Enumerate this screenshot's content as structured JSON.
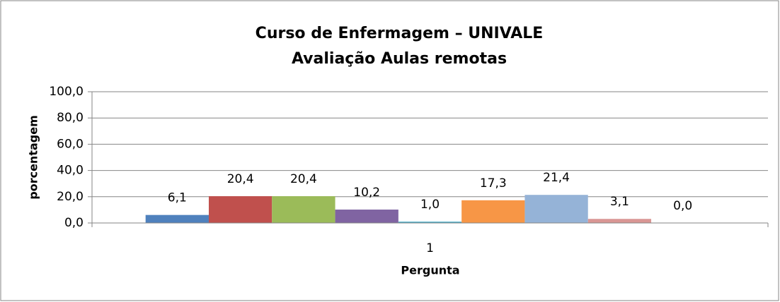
{
  "chart_data": {
    "type": "bar",
    "title": "Curso de Enfermagem – UNIVALE",
    "subtitle": "Avaliação Aulas remotas",
    "x_label": "Pergunta",
    "y_label": "porcentagem",
    "categories": [
      "1"
    ],
    "series": [
      {
        "color": "#4f81bd",
        "values": [
          6.1
        ],
        "value_labels": [
          "6,1"
        ]
      },
      {
        "color": "#c0504d",
        "values": [
          20.4
        ],
        "value_labels": [
          "20,4"
        ]
      },
      {
        "color": "#9bbb59",
        "values": [
          20.4
        ],
        "value_labels": [
          "20,4"
        ]
      },
      {
        "color": "#8064a2",
        "values": [
          10.2
        ],
        "value_labels": [
          "10,2"
        ]
      },
      {
        "color": "#4bacc6",
        "values": [
          1.0
        ],
        "value_labels": [
          "1,0"
        ]
      },
      {
        "color": "#f79646",
        "values": [
          17.3
        ],
        "value_labels": [
          "17,3"
        ]
      },
      {
        "color": "#95b3d7",
        "values": [
          21.4
        ],
        "value_labels": [
          "21,4"
        ]
      },
      {
        "color": "#d99694",
        "values": [
          3.1
        ],
        "value_labels": [
          "3,1"
        ]
      },
      {
        "color": "#c3d69b",
        "values": [
          0.0
        ],
        "value_labels": [
          "0,0"
        ]
      }
    ],
    "ylim": [
      0,
      100
    ],
    "yticks": [
      {
        "value": 0,
        "label": "0,0"
      },
      {
        "value": 20,
        "label": "20,0"
      },
      {
        "value": 40,
        "label": "40,0"
      },
      {
        "value": 60,
        "label": "60,0"
      },
      {
        "value": 80,
        "label": "80,0"
      },
      {
        "value": 100,
        "label": "100,0"
      }
    ],
    "grid": true
  }
}
